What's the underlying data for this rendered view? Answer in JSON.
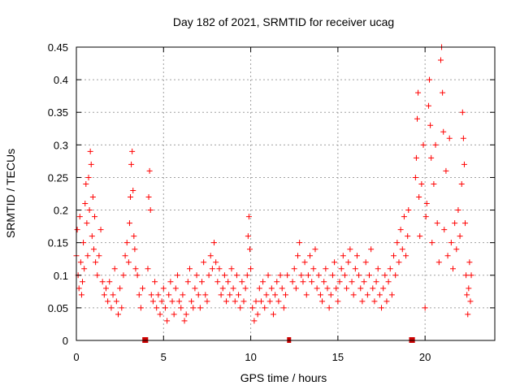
{
  "chart_data": {
    "type": "scatter",
    "title": "Day 182 of 2021, SRMTID for receiver ucag",
    "xlabel": "GPS time / hours",
    "ylabel": "SRMTID / TECUs",
    "xlim": [
      0,
      24
    ],
    "ylim": [
      0,
      0.45
    ],
    "xticks": [
      0,
      5,
      10,
      15,
      20
    ],
    "xtick_labels": [
      "0",
      "5",
      "10",
      "15",
      "20"
    ],
    "yticks": [
      0,
      0.05,
      0.1,
      0.15,
      0.2,
      0.25,
      0.3,
      0.35,
      0.4,
      0.45
    ],
    "ytick_labels": [
      "0",
      "0.05",
      "0.1",
      "0.15",
      "0.2",
      "0.25",
      "0.3",
      "0.35",
      "0.4",
      "0.45"
    ],
    "grid": true,
    "marker": "+",
    "color": "#ff0000",
    "gap_color": "#cc0000",
    "data_gaps_hours": [
      3.9,
      4.0,
      12.2,
      19.2,
      19.3
    ],
    "series": [
      {
        "name": "SRMTID",
        "points": [
          [
            0.0,
            0.13
          ],
          [
            0.05,
            0.17
          ],
          [
            0.1,
            0.1
          ],
          [
            0.15,
            0.08
          ],
          [
            0.2,
            0.19
          ],
          [
            0.25,
            0.12
          ],
          [
            0.3,
            0.07
          ],
          [
            0.35,
            0.09
          ],
          [
            0.4,
            0.15
          ],
          [
            0.45,
            0.11
          ],
          [
            0.5,
            0.21
          ],
          [
            0.55,
            0.24
          ],
          [
            0.6,
            0.18
          ],
          [
            0.65,
            0.13
          ],
          [
            0.7,
            0.25
          ],
          [
            0.75,
            0.2
          ],
          [
            0.8,
            0.29
          ],
          [
            0.85,
            0.27
          ],
          [
            0.9,
            0.16
          ],
          [
            0.95,
            0.22
          ],
          [
            1.0,
            0.14
          ],
          [
            1.05,
            0.19
          ],
          [
            1.1,
            0.12
          ],
          [
            1.2,
            0.1
          ],
          [
            1.3,
            0.13
          ],
          [
            1.4,
            0.17
          ],
          [
            1.5,
            0.09
          ],
          [
            1.6,
            0.07
          ],
          [
            1.7,
            0.08
          ],
          [
            1.8,
            0.06
          ],
          [
            1.9,
            0.09
          ],
          [
            2.0,
            0.05
          ],
          [
            2.1,
            0.07
          ],
          [
            2.2,
            0.11
          ],
          [
            2.3,
            0.06
          ],
          [
            2.4,
            0.04
          ],
          [
            2.5,
            0.08
          ],
          [
            2.6,
            0.05
          ],
          [
            2.7,
            0.1
          ],
          [
            2.8,
            0.13
          ],
          [
            2.9,
            0.15
          ],
          [
            3.0,
            0.12
          ],
          [
            3.05,
            0.18
          ],
          [
            3.1,
            0.22
          ],
          [
            3.15,
            0.27
          ],
          [
            3.2,
            0.29
          ],
          [
            3.25,
            0.23
          ],
          [
            3.3,
            0.16
          ],
          [
            3.35,
            0.14
          ],
          [
            3.4,
            0.11
          ],
          [
            3.5,
            0.1
          ],
          [
            3.6,
            0.07
          ],
          [
            3.7,
            0.05
          ],
          [
            3.8,
            0.08
          ],
          [
            4.1,
            0.11
          ],
          [
            4.15,
            0.22
          ],
          [
            4.2,
            0.26
          ],
          [
            4.25,
            0.2
          ],
          [
            4.3,
            0.07
          ],
          [
            4.4,
            0.06
          ],
          [
            4.5,
            0.09
          ],
          [
            4.6,
            0.05
          ],
          [
            4.7,
            0.07
          ],
          [
            4.8,
            0.04
          ],
          [
            4.9,
            0.06
          ],
          [
            5.0,
            0.08
          ],
          [
            5.1,
            0.05
          ],
          [
            5.2,
            0.03
          ],
          [
            5.3,
            0.07
          ],
          [
            5.4,
            0.09
          ],
          [
            5.5,
            0.06
          ],
          [
            5.6,
            0.04
          ],
          [
            5.7,
            0.08
          ],
          [
            5.8,
            0.1
          ],
          [
            5.9,
            0.06
          ],
          [
            6.0,
            0.05
          ],
          [
            6.1,
            0.07
          ],
          [
            6.2,
            0.03
          ],
          [
            6.3,
            0.04
          ],
          [
            6.4,
            0.09
          ],
          [
            6.5,
            0.11
          ],
          [
            6.6,
            0.06
          ],
          [
            6.7,
            0.05
          ],
          [
            6.8,
            0.08
          ],
          [
            6.9,
            0.1
          ],
          [
            7.0,
            0.07
          ],
          [
            7.1,
            0.05
          ],
          [
            7.2,
            0.09
          ],
          [
            7.3,
            0.12
          ],
          [
            7.4,
            0.07
          ],
          [
            7.5,
            0.06
          ],
          [
            7.6,
            0.1
          ],
          [
            7.7,
            0.13
          ],
          [
            7.8,
            0.11
          ],
          [
            7.9,
            0.15
          ],
          [
            8.0,
            0.12
          ],
          [
            8.1,
            0.09
          ],
          [
            8.2,
            0.11
          ],
          [
            8.3,
            0.07
          ],
          [
            8.4,
            0.08
          ],
          [
            8.5,
            0.1
          ],
          [
            8.6,
            0.06
          ],
          [
            8.7,
            0.09
          ],
          [
            8.8,
            0.07
          ],
          [
            8.9,
            0.11
          ],
          [
            9.0,
            0.08
          ],
          [
            9.1,
            0.06
          ],
          [
            9.2,
            0.1
          ],
          [
            9.3,
            0.07
          ],
          [
            9.4,
            0.05
          ],
          [
            9.5,
            0.09
          ],
          [
            9.6,
            0.06
          ],
          [
            9.7,
            0.08
          ],
          [
            9.8,
            0.1
          ],
          [
            9.85,
            0.16
          ],
          [
            9.9,
            0.19
          ],
          [
            9.95,
            0.14
          ],
          [
            10.0,
            0.11
          ],
          [
            10.1,
            0.05
          ],
          [
            10.2,
            0.03
          ],
          [
            10.3,
            0.06
          ],
          [
            10.4,
            0.04
          ],
          [
            10.5,
            0.08
          ],
          [
            10.6,
            0.06
          ],
          [
            10.7,
            0.09
          ],
          [
            10.8,
            0.05
          ],
          [
            10.9,
            0.07
          ],
          [
            11.0,
            0.1
          ],
          [
            11.1,
            0.06
          ],
          [
            11.2,
            0.08
          ],
          [
            11.3,
            0.04
          ],
          [
            11.4,
            0.07
          ],
          [
            11.5,
            0.09
          ],
          [
            11.6,
            0.06
          ],
          [
            11.7,
            0.1
          ],
          [
            11.8,
            0.08
          ],
          [
            11.9,
            0.05
          ],
          [
            12.0,
            0.07
          ],
          [
            12.1,
            0.1
          ],
          [
            12.4,
            0.09
          ],
          [
            12.5,
            0.11
          ],
          [
            12.6,
            0.08
          ],
          [
            12.7,
            0.13
          ],
          [
            12.8,
            0.15
          ],
          [
            12.9,
            0.1
          ],
          [
            13.0,
            0.09
          ],
          [
            13.1,
            0.12
          ],
          [
            13.2,
            0.07
          ],
          [
            13.3,
            0.1
          ],
          [
            13.4,
            0.13
          ],
          [
            13.5,
            0.09
          ],
          [
            13.6,
            0.11
          ],
          [
            13.7,
            0.14
          ],
          [
            13.8,
            0.08
          ],
          [
            13.9,
            0.1
          ],
          [
            14.0,
            0.07
          ],
          [
            14.1,
            0.06
          ],
          [
            14.2,
            0.09
          ],
          [
            14.3,
            0.11
          ],
          [
            14.4,
            0.08
          ],
          [
            14.5,
            0.05
          ],
          [
            14.6,
            0.07
          ],
          [
            14.7,
            0.1
          ],
          [
            14.8,
            0.12
          ],
          [
            14.9,
            0.08
          ],
          [
            15.0,
            0.06
          ],
          [
            15.1,
            0.09
          ],
          [
            15.2,
            0.11
          ],
          [
            15.3,
            0.13
          ],
          [
            15.4,
            0.1
          ],
          [
            15.5,
            0.08
          ],
          [
            15.6,
            0.12
          ],
          [
            15.7,
            0.14
          ],
          [
            15.8,
            0.09
          ],
          [
            15.9,
            0.07
          ],
          [
            16.0,
            0.11
          ],
          [
            16.1,
            0.13
          ],
          [
            16.2,
            0.1
          ],
          [
            16.3,
            0.08
          ],
          [
            16.4,
            0.06
          ],
          [
            16.5,
            0.09
          ],
          [
            16.6,
            0.12
          ],
          [
            16.7,
            0.07
          ],
          [
            16.8,
            0.1
          ],
          [
            16.9,
            0.14
          ],
          [
            17.0,
            0.08
          ],
          [
            17.1,
            0.06
          ],
          [
            17.2,
            0.09
          ],
          [
            17.3,
            0.11
          ],
          [
            17.4,
            0.07
          ],
          [
            17.5,
            0.05
          ],
          [
            17.6,
            0.08
          ],
          [
            17.7,
            0.1
          ],
          [
            17.8,
            0.06
          ],
          [
            17.9,
            0.09
          ],
          [
            18.0,
            0.11
          ],
          [
            18.1,
            0.07
          ],
          [
            18.2,
            0.13
          ],
          [
            18.3,
            0.1
          ],
          [
            18.4,
            0.15
          ],
          [
            18.5,
            0.12
          ],
          [
            18.6,
            0.17
          ],
          [
            18.7,
            0.14
          ],
          [
            18.8,
            0.19
          ],
          [
            18.9,
            0.13
          ],
          [
            19.0,
            0.16
          ],
          [
            19.05,
            0.2
          ],
          [
            19.45,
            0.25
          ],
          [
            19.5,
            0.28
          ],
          [
            19.55,
            0.34
          ],
          [
            19.6,
            0.38
          ],
          [
            19.65,
            0.22
          ],
          [
            19.7,
            0.16
          ],
          [
            19.8,
            0.24
          ],
          [
            19.9,
            0.3
          ],
          [
            20.0,
            0.05
          ],
          [
            20.05,
            0.19
          ],
          [
            20.1,
            0.21
          ],
          [
            20.2,
            0.36
          ],
          [
            20.25,
            0.4
          ],
          [
            20.3,
            0.33
          ],
          [
            20.35,
            0.28
          ],
          [
            20.4,
            0.15
          ],
          [
            20.5,
            0.24
          ],
          [
            20.6,
            0.3
          ],
          [
            20.7,
            0.18
          ],
          [
            20.8,
            0.12
          ],
          [
            20.9,
            0.43
          ],
          [
            20.95,
            0.45
          ],
          [
            21.0,
            0.38
          ],
          [
            21.05,
            0.32
          ],
          [
            21.1,
            0.17
          ],
          [
            21.2,
            0.26
          ],
          [
            21.3,
            0.13
          ],
          [
            21.4,
            0.31
          ],
          [
            21.5,
            0.15
          ],
          [
            21.6,
            0.11
          ],
          [
            21.7,
            0.18
          ],
          [
            21.8,
            0.14
          ],
          [
            21.9,
            0.2
          ],
          [
            22.0,
            0.16
          ],
          [
            22.1,
            0.24
          ],
          [
            22.15,
            0.35
          ],
          [
            22.2,
            0.31
          ],
          [
            22.25,
            0.27
          ],
          [
            22.3,
            0.18
          ],
          [
            22.35,
            0.1
          ],
          [
            22.4,
            0.07
          ],
          [
            22.45,
            0.04
          ],
          [
            22.5,
            0.08
          ],
          [
            22.55,
            0.12
          ],
          [
            22.6,
            0.06
          ],
          [
            22.65,
            0.1
          ]
        ]
      }
    ]
  }
}
